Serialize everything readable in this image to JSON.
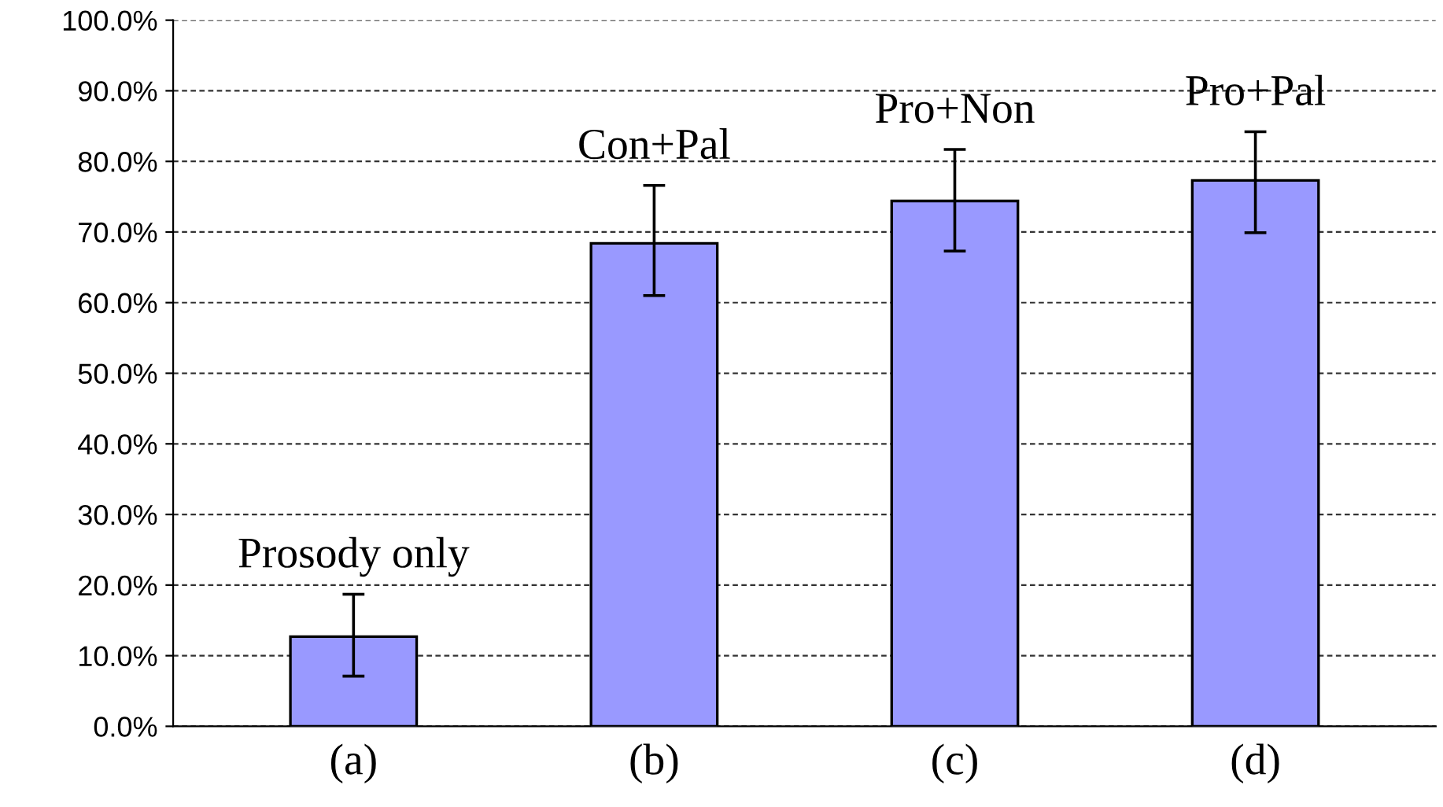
{
  "chart_data": {
    "type": "bar",
    "categories": [
      "(a)",
      "(b)",
      "(c)",
      "(d)"
    ],
    "values": [
      12.7,
      68.4,
      74.4,
      77.3
    ],
    "errors": [
      [
        7.1,
        18.7
      ],
      [
        61.0,
        76.6
      ],
      [
        67.3,
        81.7
      ],
      [
        69.9,
        84.2
      ]
    ],
    "color": "#9999ff",
    "ylim": [
      0,
      100
    ],
    "yticks": [
      {
        "value": 0,
        "label": "0.0%"
      },
      {
        "value": 10,
        "label": "10.0%"
      },
      {
        "value": 20,
        "label": "20.0%"
      },
      {
        "value": 30,
        "label": "30.0%"
      },
      {
        "value": 40,
        "label": "40.0%"
      },
      {
        "value": 50,
        "label": "50.0%"
      },
      {
        "value": 60,
        "label": "60.0%"
      },
      {
        "value": 70,
        "label": "70.0%"
      },
      {
        "value": 80,
        "label": "80.0%"
      },
      {
        "value": 90,
        "label": "90.0%"
      },
      {
        "value": 100,
        "label": "100.0%"
      }
    ],
    "grid": "y",
    "annotations": [
      {
        "text": "Prosody only",
        "x": "(a)",
        "y": 12.7
      },
      {
        "text": "Con+Pal",
        "x": "(b)",
        "y": 68.4
      },
      {
        "text": "Pro+Non",
        "x": "(c)",
        "y": 74.4
      },
      {
        "text": "Pro+Pal",
        "x": "(d)",
        "y": 77.3
      }
    ]
  }
}
